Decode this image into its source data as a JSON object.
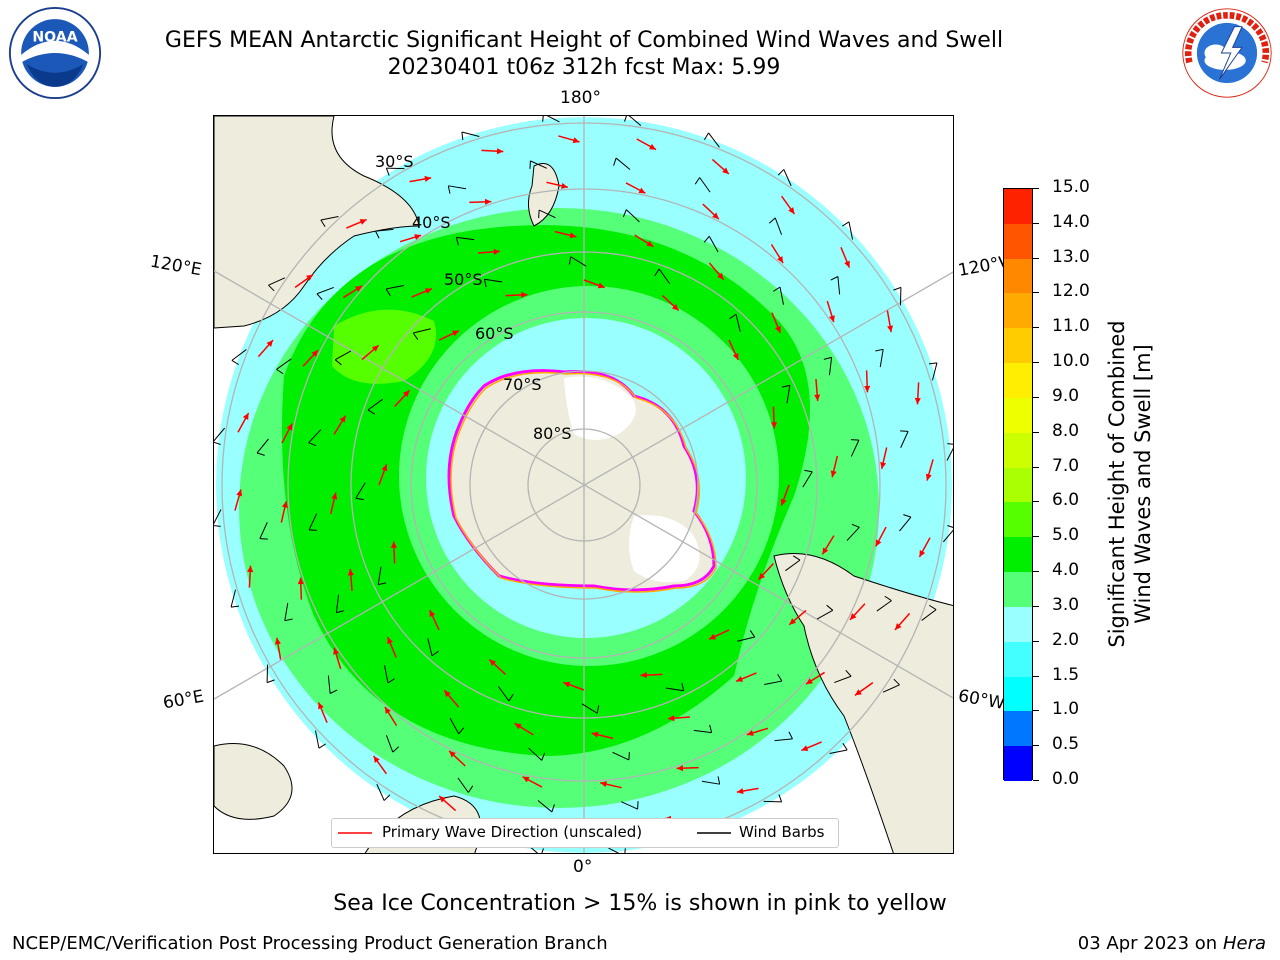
{
  "header": {
    "title_line1": "GEFS MEAN Antarctic Significant Height of Combined Wind Waves and Swell",
    "title_line2": "20230401 t06z 312h fcst   Max: 5.99"
  },
  "logos": {
    "left": {
      "icon": "noaa-logo",
      "text": "NOAA",
      "ring_text": "NATIONAL OCEANIC AND ATMOSPHERIC ADMINISTRATION · U.S. DEPARTMENT OF COMMERCE"
    },
    "right": {
      "icon": "nws-logo",
      "ring_text": "NATIONAL WEATHER SERVICE"
    }
  },
  "map": {
    "projection": "south-polar-stereographic",
    "longitude_labels": {
      "top": "180°",
      "bottom": "0°",
      "upper_left": "120°E",
      "upper_right": "120°W",
      "lower_left": "60°E",
      "lower_right": "60°W"
    },
    "latitude_labels": [
      "30°S",
      "40°S",
      "50°S",
      "60°S",
      "70°S",
      "80°S"
    ],
    "legend": {
      "wave_direction": "Primary Wave Direction (unscaled)",
      "wind_barbs": "Wind Barbs"
    },
    "colors": {
      "land": "#eeecdc",
      "ice_shelf": "#ffffff",
      "wave_arrow": "#ff0000",
      "barb": "#000000",
      "grid": "#b4b4b4",
      "sea_ice_edge": [
        "#ff00ff",
        "#ffaa00",
        "#ffff00"
      ]
    }
  },
  "colorbar": {
    "label_line1": "Significant Height of Combined",
    "label_line2": "Wind Waves and Swell [m]",
    "ticks": [
      "0.0",
      "0.5",
      "1.0",
      "1.5",
      "2.0",
      "3.0",
      "4.0",
      "5.0",
      "6.0",
      "7.0",
      "8.0",
      "9.0",
      "10.0",
      "11.0",
      "12.0",
      "13.0",
      "14.0",
      "15.0"
    ],
    "colors": [
      "#0000ff",
      "#0077ff",
      "#00ffff",
      "#44ffff",
      "#99ffff",
      "#55ff77",
      "#00ee00",
      "#55ff00",
      "#aaff00",
      "#ccff00",
      "#eeff00",
      "#ffee00",
      "#ffcc00",
      "#ffaa00",
      "#ff8800",
      "#ff5500",
      "#ff2200"
    ]
  },
  "footer": {
    "note": "Sea Ice Concentration > 15% is shown in pink to yellow",
    "left": "NCEP/EMC/Verification Post Processing Product Generation Branch",
    "right_date": "03 Apr 2023 on ",
    "right_host": "Hera"
  }
}
